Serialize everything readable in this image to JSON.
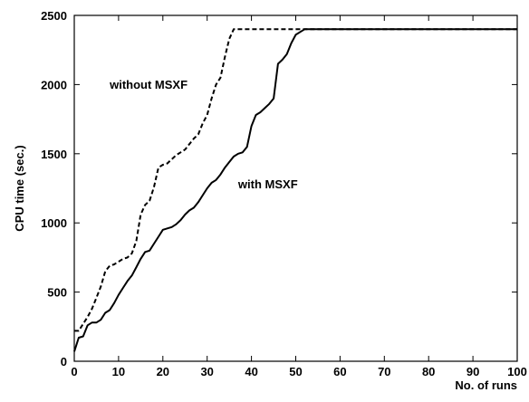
{
  "chart_data": {
    "type": "line",
    "title": "",
    "xlabel": "No. of runs",
    "ylabel": "CPU time (sec.)",
    "xlim": [
      0,
      100
    ],
    "ylim": [
      0,
      2500
    ],
    "xticks": [
      0,
      10,
      20,
      30,
      40,
      50,
      60,
      70,
      80,
      90,
      100
    ],
    "yticks": [
      0,
      500,
      1000,
      1500,
      2000,
      2500
    ],
    "grid": false,
    "legend": "none",
    "series": [
      {
        "name": "with MSXF",
        "style": "solid",
        "label_at": [
          37,
          1250
        ],
        "x": [
          0,
          1,
          2,
          3,
          4,
          5,
          6,
          7,
          8,
          9,
          10,
          11,
          12,
          13,
          14,
          15,
          16,
          17,
          18,
          19,
          20,
          21,
          22,
          23,
          24,
          25,
          26,
          27,
          28,
          29,
          30,
          31,
          32,
          33,
          34,
          35,
          36,
          37,
          38,
          39,
          40,
          41,
          42,
          43,
          44,
          45,
          46,
          47,
          48,
          49,
          50,
          51,
          52,
          53,
          54,
          100
        ],
        "values": [
          70,
          170,
          180,
          260,
          280,
          280,
          300,
          350,
          370,
          420,
          480,
          530,
          580,
          620,
          680,
          740,
          790,
          800,
          850,
          900,
          950,
          960,
          970,
          990,
          1020,
          1060,
          1090,
          1110,
          1150,
          1200,
          1250,
          1290,
          1310,
          1350,
          1400,
          1440,
          1480,
          1500,
          1510,
          1550,
          1700,
          1780,
          1800,
          1830,
          1860,
          1900,
          2150,
          2180,
          2220,
          2300,
          2360,
          2380,
          2400,
          2400,
          2400,
          2400
        ]
      },
      {
        "name": "without MSXF",
        "style": "dashed",
        "label_at": [
          8,
          1970
        ],
        "x": [
          0,
          1,
          2,
          3,
          4,
          5,
          6,
          7,
          8,
          9,
          10,
          11,
          12,
          13,
          14,
          15,
          16,
          17,
          18,
          19,
          20,
          21,
          22,
          23,
          24,
          25,
          26,
          27,
          28,
          29,
          30,
          31,
          32,
          33,
          34,
          35,
          36,
          37,
          100
        ],
        "values": [
          220,
          220,
          270,
          320,
          380,
          460,
          540,
          650,
          690,
          700,
          720,
          740,
          750,
          780,
          870,
          1060,
          1130,
          1160,
          1260,
          1400,
          1420,
          1430,
          1460,
          1490,
          1510,
          1530,
          1570,
          1610,
          1640,
          1720,
          1780,
          1900,
          2000,
          2050,
          2200,
          2330,
          2400,
          2400,
          2400
        ]
      }
    ]
  }
}
